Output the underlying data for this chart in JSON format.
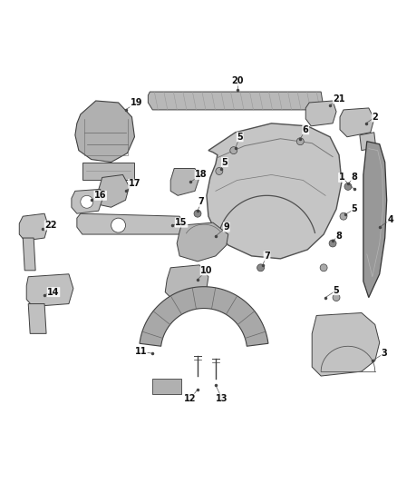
{
  "bg_color": "#ffffff",
  "fig_width": 4.38,
  "fig_height": 5.33,
  "dpi": 100,
  "label_color": "#111111",
  "label_fontsize": 7.0,
  "line_color": "#444444",
  "parts_gray": "#b0b0b0",
  "parts_dark": "#888888",
  "parts_light": "#d0d0d0"
}
